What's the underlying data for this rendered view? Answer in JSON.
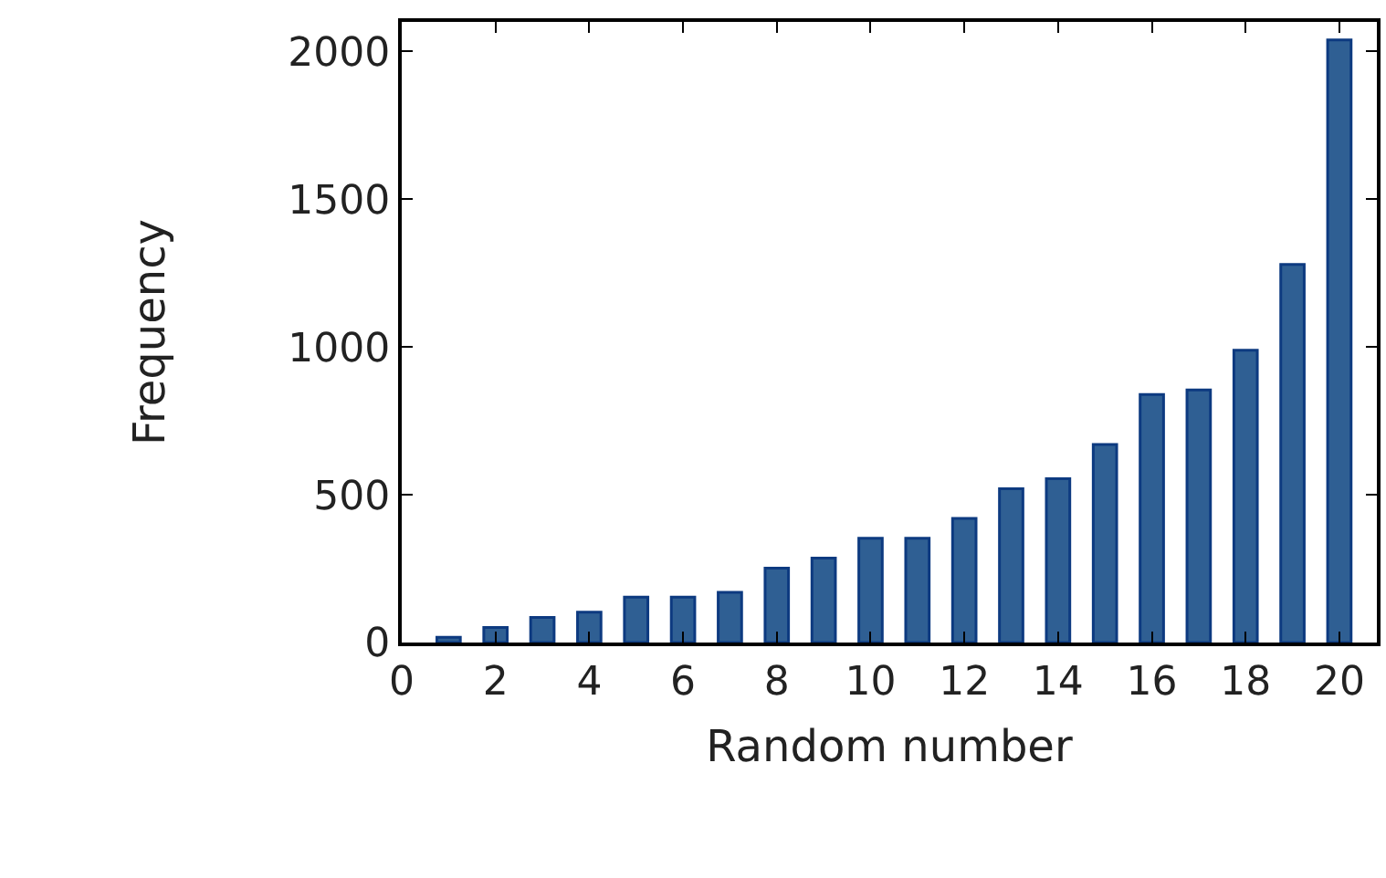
{
  "chart_data": {
    "type": "bar",
    "xlabel": "Random number",
    "ylabel": "Frequency",
    "x": [
      1,
      2,
      3,
      4,
      5,
      6,
      7,
      8,
      9,
      10,
      11,
      12,
      13,
      14,
      15,
      16,
      17,
      18,
      19,
      20
    ],
    "values": [
      18,
      51,
      85,
      103,
      154,
      154,
      170,
      252,
      286,
      353,
      353,
      420,
      520,
      554,
      670,
      839,
      855,
      989,
      1279,
      2039
    ],
    "color": "#2f5f93",
    "xlim": [
      0,
      20.8
    ],
    "xticks": [
      0,
      2,
      4,
      6,
      8,
      10,
      12,
      14,
      16,
      18,
      20
    ],
    "ylim": [
      0,
      2100
    ],
    "yticks": [
      0,
      500,
      1000,
      1500,
      2000
    ]
  }
}
